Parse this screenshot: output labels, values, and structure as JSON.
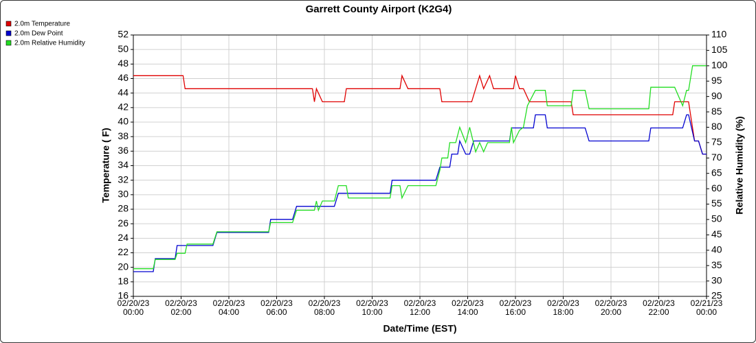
{
  "chart_data": {
    "type": "line",
    "title": "Garrett County Airport (K2G4)",
    "x_label": "Date/Time (EST)",
    "y_label": "Temperature ( F)",
    "y2_label": "Relative Humidity (%)",
    "xlim": [
      "02/20/23 00:00",
      "02/21/23 00:00"
    ],
    "xticks": [
      "02/20/23 00:00",
      "02/20/23 02:00",
      "02/20/23 04:00",
      "02/20/23 06:00",
      "02/20/23 08:00",
      "02/20/23 10:00",
      "02/20/23 12:00",
      "02/20/23 14:00",
      "02/20/23 16:00",
      "02/20/23 18:00",
      "02/20/23 20:00",
      "02/20/23 22:00",
      "02/21/23 00:00"
    ],
    "ylim": [
      16,
      52
    ],
    "yticks": [
      16,
      18,
      20,
      22,
      24,
      26,
      28,
      30,
      32,
      34,
      36,
      38,
      40,
      42,
      44,
      46,
      48,
      50,
      52
    ],
    "y2lim": [
      25,
      110
    ],
    "y2ticks": [
      25,
      30,
      35,
      40,
      45,
      50,
      55,
      60,
      65,
      70,
      75,
      80,
      85,
      90,
      95,
      100,
      105,
      110
    ],
    "grid": true,
    "legend": "upper left",
    "series": [
      {
        "name": "2.0m Temperature",
        "color": "#e00000",
        "x": [
          "02/20/23 00:00",
          "02/20/23 02:05",
          "02/20/23 02:10",
          "02/20/23 07:30",
          "02/20/23 07:35",
          "02/20/23 07:40",
          "02/20/23 07:55",
          "02/20/23 08:50",
          "02/20/23 08:55",
          "02/20/23 11:10",
          "02/20/23 11:15",
          "02/20/23 11:30",
          "02/20/23 12:50",
          "02/20/23 12:55",
          "02/20/23 14:10",
          "02/20/23 14:20",
          "02/20/23 14:30",
          "02/20/23 14:40",
          "02/20/23 14:55",
          "02/20/23 15:05",
          "02/20/23 15:55",
          "02/20/23 16:00",
          "02/20/23 16:10",
          "02/20/23 16:20",
          "02/20/23 16:35",
          "02/20/23 18:20",
          "02/20/23 18:25",
          "02/20/23 22:35",
          "02/20/23 22:40",
          "02/20/23 23:15",
          "02/20/23 23:30",
          "02/20/23 23:40",
          "02/20/23 23:50",
          "02/21/23 00:00"
        ],
        "values": [
          46.4,
          46.4,
          44.6,
          44.6,
          42.8,
          44.6,
          42.8,
          42.8,
          44.6,
          44.6,
          46.4,
          44.6,
          44.6,
          42.8,
          42.8,
          44.6,
          46.4,
          44.6,
          46.4,
          44.6,
          44.6,
          46.4,
          44.6,
          44.6,
          42.8,
          42.8,
          41,
          41,
          42.8,
          42.8,
          37.4,
          37.4,
          35.6,
          35.6
        ]
      },
      {
        "name": "2.0m Dew Point",
        "color": "#0000d0",
        "x": [
          "02/20/23 00:00",
          "02/20/23 00:50",
          "02/20/23 00:55",
          "02/20/23 01:45",
          "02/20/23 01:50",
          "02/20/23 03:20",
          "02/20/23 03:30",
          "02/20/23 05:40",
          "02/20/23 05:45",
          "02/20/23 06:40",
          "02/20/23 06:50",
          "02/20/23 08:25",
          "02/20/23 08:35",
          "02/20/23 10:45",
          "02/20/23 10:50",
          "02/20/23 12:40",
          "02/20/23 12:50",
          "02/20/23 13:15",
          "02/20/23 13:20",
          "02/20/23 13:35",
          "02/20/23 13:40",
          "02/20/23 13:55",
          "02/20/23 14:05",
          "02/20/23 14:15",
          "02/20/23 15:45",
          "02/20/23 15:50",
          "02/20/23 16:45",
          "02/20/23 16:50",
          "02/20/23 17:15",
          "02/20/23 17:20",
          "02/20/23 18:55",
          "02/20/23 19:05",
          "02/20/23 21:35",
          "02/20/23 21:40",
          "02/20/23 23:00",
          "02/20/23 23:10",
          "02/20/23 23:15",
          "02/20/23 23:30",
          "02/20/23 23:40",
          "02/20/23 23:50",
          "02/21/23 00:00"
        ],
        "values": [
          19.4,
          19.4,
          21.2,
          21.2,
          23,
          23,
          24.8,
          24.8,
          26.6,
          26.6,
          28.4,
          28.4,
          30.2,
          30.2,
          32,
          32,
          33.8,
          33.8,
          35.6,
          35.6,
          37.4,
          35.6,
          35.6,
          37.4,
          37.4,
          39.2,
          39.2,
          41,
          41,
          39.2,
          39.2,
          37.4,
          37.4,
          39.2,
          39.2,
          41,
          41,
          37.4,
          37.4,
          35.6,
          35.6
        ]
      },
      {
        "name": "2.0m Relative Humidity",
        "color": "#22dd22",
        "axis": "y2",
        "x": [
          "02/20/23 00:00",
          "02/20/23 00:50",
          "02/20/23 00:55",
          "02/20/23 01:45",
          "02/20/23 01:50",
          "02/20/23 02:10",
          "02/20/23 02:15",
          "02/20/23 03:20",
          "02/20/23 03:30",
          "02/20/23 05:40",
          "02/20/23 05:45",
          "02/20/23 06:40",
          "02/20/23 06:50",
          "02/20/23 07:35",
          "02/20/23 07:40",
          "02/20/23 07:45",
          "02/20/23 07:55",
          "02/20/23 08:25",
          "02/20/23 08:35",
          "02/20/23 08:55",
          "02/20/23 09:00",
          "02/20/23 10:45",
          "02/20/23 10:50",
          "02/20/23 11:10",
          "02/20/23 11:15",
          "02/20/23 11:30",
          "02/20/23 12:40",
          "02/20/23 12:50",
          "02/20/23 12:55",
          "02/20/23 13:10",
          "02/20/23 13:15",
          "02/20/23 13:30",
          "02/20/23 13:40",
          "02/20/23 13:55",
          "02/20/23 14:05",
          "02/20/23 14:20",
          "02/20/23 14:30",
          "02/20/23 14:40",
          "02/20/23 14:50",
          "02/20/23 15:45",
          "02/20/23 15:50",
          "02/20/23 15:55",
          "02/20/23 16:10",
          "02/20/23 16:20",
          "02/20/23 16:30",
          "02/20/23 16:50",
          "02/20/23 17:15",
          "02/20/23 17:20",
          "02/20/23 18:20",
          "02/20/23 18:25",
          "02/20/23 18:55",
          "02/20/23 19:05",
          "02/20/23 21:35",
          "02/20/23 21:40",
          "02/20/23 22:40",
          "02/20/23 23:00",
          "02/20/23 23:10",
          "02/20/23 23:15",
          "02/20/23 23:25",
          "02/21/23 00:00"
        ],
        "values": [
          34,
          34,
          37,
          37,
          39,
          39,
          42,
          42,
          46,
          46,
          49,
          49,
          53,
          53,
          56,
          53,
          56,
          56,
          61,
          61,
          57,
          57,
          61,
          61,
          57,
          61,
          61,
          66,
          70,
          70,
          75,
          75,
          80,
          75,
          80,
          72,
          75,
          72,
          75,
          75,
          80,
          75,
          79,
          80,
          87,
          92,
          92,
          87,
          87,
          92,
          92,
          86,
          86,
          93,
          93,
          87,
          92,
          92,
          100,
          100
        ]
      }
    ]
  }
}
